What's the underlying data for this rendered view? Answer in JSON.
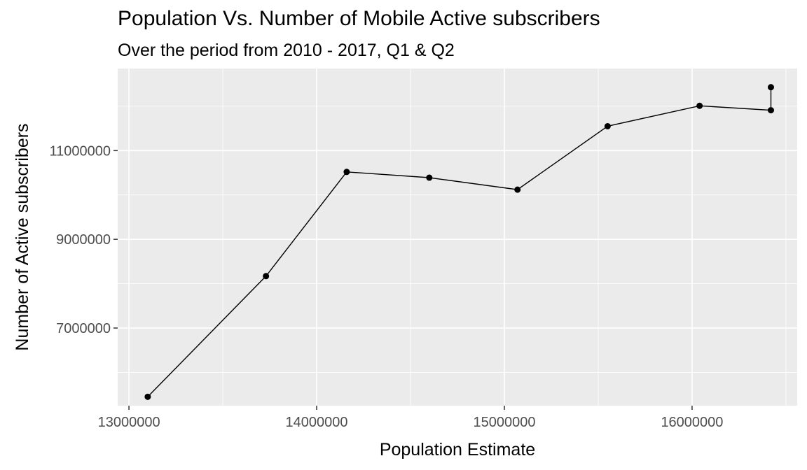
{
  "chart_data": {
    "type": "line",
    "title": "Population Vs. Number of Mobile Active subscribers",
    "subtitle": "Over the period from 2010 - 2017, Q1 & Q2",
    "xlabel": "Population Estimate",
    "ylabel": "Number of Active subscribers",
    "xlim": [
      12940000,
      16560000
    ],
    "ylim": [
      5250000,
      12850000
    ],
    "x_ticks": [
      13000000,
      14000000,
      15000000,
      16000000
    ],
    "x_tick_labels": [
      "13000000",
      "14000000",
      "15000000",
      "16000000"
    ],
    "y_ticks": [
      7000000,
      9000000,
      11000000
    ],
    "y_tick_labels": [
      "7000000",
      "9000000",
      "11000000"
    ],
    "grid": true,
    "legend": "none",
    "colors": {
      "panel": "#ebebeb",
      "grid": "#ffffff",
      "line": "#000000",
      "point": "#000000"
    },
    "series": [
      {
        "x": [
          13100000,
          13730000,
          14160000,
          14600000,
          15070000,
          15550000,
          16040000,
          16420000,
          16420000
        ],
        "y": [
          5450000,
          8170000,
          10520000,
          10390000,
          10120000,
          11550000,
          12010000,
          11910000,
          12430000
        ]
      }
    ]
  }
}
